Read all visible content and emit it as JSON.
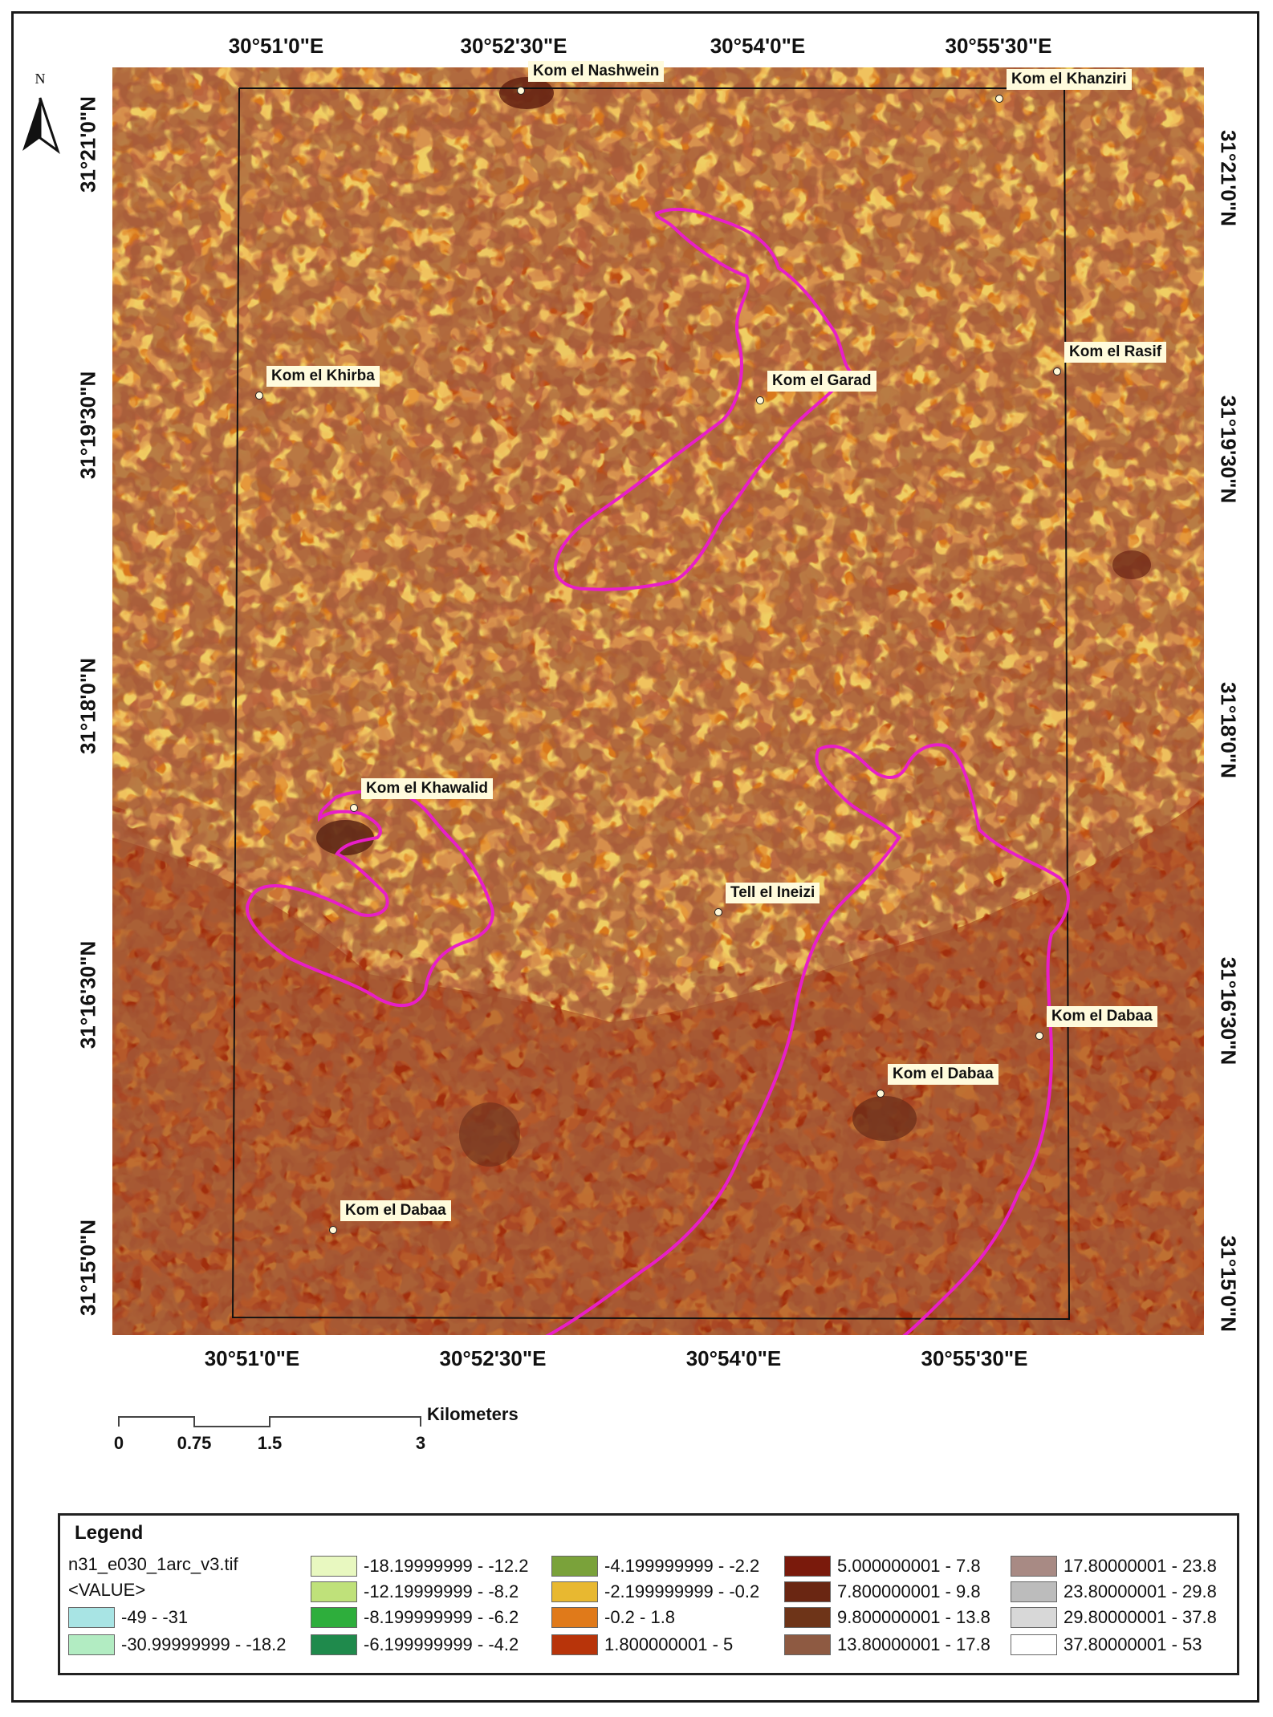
{
  "map": {
    "north_label": "N",
    "top_coords": [
      "30°51'0\"E",
      "30°52'30\"E",
      "30°54'0\"E",
      "30°55'30\"E"
    ],
    "bottom_coords": [
      "30°51'0\"E",
      "30°52'30\"E",
      "30°54'0\"E",
      "30°55'30\"E"
    ],
    "left_coords": [
      "31°21'0\"N",
      "31°19'30\"N",
      "31°18'0\"N",
      "31°16'30\"N",
      "31°15'0\"N"
    ],
    "right_coords": [
      "31°21'0\"N",
      "31°19'30\"N",
      "31°18'0\"N",
      "31°16'30\"N",
      "31°15'0\"N"
    ],
    "places": [
      {
        "name": "Kom el Nashwein"
      },
      {
        "name": "Kom el Khanziri"
      },
      {
        "name": "Kom el Rasif"
      },
      {
        "name": "Kom el Khirba"
      },
      {
        "name": "Kom el Garad"
      },
      {
        "name": "Kom el Khawalid"
      },
      {
        "name": "Tell el Ineizi"
      },
      {
        "name": "Kom el Dabaa"
      },
      {
        "name": "Kom el Dabaa"
      },
      {
        "name": "Kom el Dabaa"
      }
    ],
    "boundary_color": "#e81ec8"
  },
  "scalebar": {
    "units": "Kilometers",
    "labels": [
      "0",
      "0.75",
      "1.5",
      "3"
    ]
  },
  "legend": {
    "title": "Legend",
    "layer_name": "n31_e030_1arc_v3.tif",
    "field": "<VALUE>",
    "classes": [
      {
        "label": "-49 - -31",
        "color": "#a8e4e4"
      },
      {
        "label": "-30.99999999 - -18.2",
        "color": "#b2ecc2"
      },
      {
        "label": "-18.19999999 - -12.2",
        "color": "#e8f8c0"
      },
      {
        "label": "-12.19999999 - -8.2",
        "color": "#bfe17a"
      },
      {
        "label": "-8.199999999 - -6.2",
        "color": "#2eae3c"
      },
      {
        "label": "-6.199999999 - -4.2",
        "color": "#1f8a4c"
      },
      {
        "label": "-4.199999999 - -2.2",
        "color": "#7aa23a"
      },
      {
        "label": "-2.199999999 - -0.2",
        "color": "#e8b830"
      },
      {
        "label": "-0.2 - 1.8",
        "color": "#e07a1a"
      },
      {
        "label": "1.800000001 - 5",
        "color": "#b8340a"
      },
      {
        "label": "5.000000001 - 7.8",
        "color": "#7a1a0c"
      },
      {
        "label": "7.800000001 - 9.8",
        "color": "#6a2612"
      },
      {
        "label": "9.800000001 - 13.8",
        "color": "#6e3418"
      },
      {
        "label": "13.80000001 - 17.8",
        "color": "#8e5a42"
      },
      {
        "label": "17.80000001 - 23.8",
        "color": "#a88a84"
      },
      {
        "label": "23.80000001 - 29.8",
        "color": "#bcbcbc"
      },
      {
        "label": "29.80000001 - 37.8",
        "color": "#d8d8d8"
      },
      {
        "label": "37.80000001 - 53",
        "color": "#ffffff"
      }
    ]
  }
}
